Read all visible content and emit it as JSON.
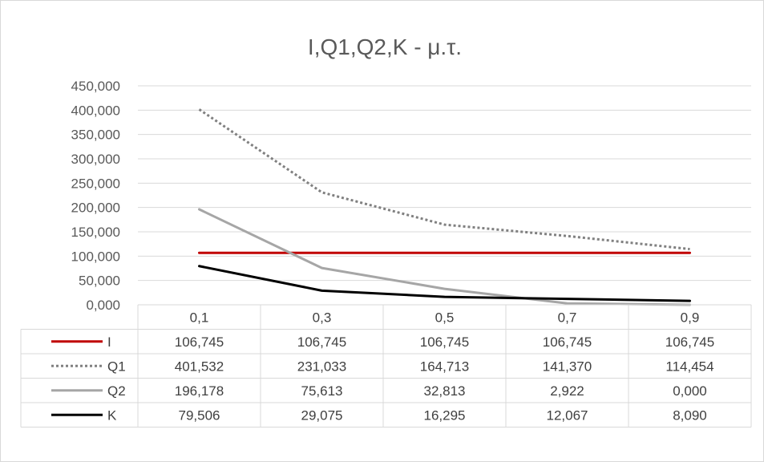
{
  "chart_data": {
    "type": "line",
    "title": "I,Q1,Q2,K - μ.τ.",
    "categories": [
      "0,1",
      "0,3",
      "0,5",
      "0,7",
      "0,9"
    ],
    "ylim": [
      0,
      450
    ],
    "yticks": [
      {
        "value": 0,
        "label": "0,000"
      },
      {
        "value": 50,
        "label": "50,000"
      },
      {
        "value": 100,
        "label": "100,000"
      },
      {
        "value": 150,
        "label": "150,000"
      },
      {
        "value": 200,
        "label": "200,000"
      },
      {
        "value": 250,
        "label": "250,000"
      },
      {
        "value": 300,
        "label": "300,000"
      },
      {
        "value": 350,
        "label": "350,000"
      },
      {
        "value": 400,
        "label": "400,000"
      },
      {
        "value": 450,
        "label": "450,000"
      }
    ],
    "grid": true,
    "legend": "data-table",
    "series": [
      {
        "name": "I",
        "color": "#C00000",
        "dash": "solid",
        "values": [
          106.745,
          106.745,
          106.745,
          106.745,
          106.745
        ],
        "labels": [
          "106,745",
          "106,745",
          "106,745",
          "106,745",
          "106,745"
        ]
      },
      {
        "name": "Q1",
        "color": "#808080",
        "dash": "dotted",
        "values": [
          401.532,
          231.033,
          164.713,
          141.37,
          114.454
        ],
        "labels": [
          "401,532",
          "231,033",
          "164,713",
          "141,370",
          "114,454"
        ]
      },
      {
        "name": "Q2",
        "color": "#A6A6A6",
        "dash": "solid",
        "values": [
          196.178,
          75.613,
          32.813,
          2.922,
          0.0
        ],
        "labels": [
          "196,178",
          "75,613",
          "32,813",
          "2,922",
          "0,000"
        ]
      },
      {
        "name": "K",
        "color": "#000000",
        "dash": "solid",
        "values": [
          79.506,
          29.075,
          16.295,
          12.067,
          8.09
        ],
        "labels": [
          "79,506",
          "29,075",
          "16,295",
          "12,067",
          "8,090"
        ]
      }
    ]
  }
}
